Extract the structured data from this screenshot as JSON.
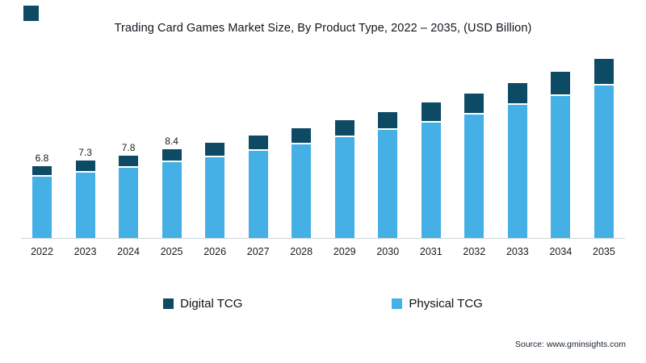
{
  "page": {
    "title": "Trading Card Games Market Size, By Product Type, 2022 – 2035, (USD Billion)",
    "source": "Source: www.gminsights.com"
  },
  "colors": {
    "digital_tcg": "#0d4a63",
    "physical_tcg": "#45b0e5",
    "logo": "#0d4a63"
  },
  "legend": [
    {
      "label": "Digital TCG",
      "color": "#0d4a63"
    },
    {
      "label": "Physical TCG",
      "color": "#45b0e5"
    }
  ],
  "chart_data": {
    "type": "bar",
    "stacked": true,
    "title": "Trading Card Games Market Size, By Product Type, 2022 – 2035, (USD Billion)",
    "xlabel": "",
    "ylabel": "USD Billion",
    "ylim": [
      0,
      17.5
    ],
    "grid": false,
    "legend_position": "bottom",
    "categories": [
      "2022",
      "2023",
      "2024",
      "2025",
      "2026",
      "2027",
      "2028",
      "2029",
      "2030",
      "2031",
      "2032",
      "2033",
      "2034",
      "2035"
    ],
    "series": [
      {
        "name": "Physical TCG",
        "color": "#45b0e5",
        "values": [
          5.9,
          6.3,
          6.8,
          7.3,
          7.8,
          8.4,
          9.0,
          9.7,
          10.4,
          11.1,
          11.9,
          12.8,
          13.7,
          14.7
        ]
      },
      {
        "name": "Digital TCG",
        "color": "#0d4a63",
        "values": [
          0.9,
          1.0,
          1.0,
          1.1,
          1.2,
          1.3,
          1.4,
          1.5,
          1.6,
          1.8,
          1.9,
          2.0,
          2.2,
          2.4
        ]
      }
    ],
    "totals": [
      6.8,
      7.3,
      7.8,
      8.4,
      9.0,
      9.7,
      10.4,
      11.2,
      12.0,
      12.9,
      13.8,
      14.8,
      15.9,
      17.1
    ],
    "total_labels": {
      "2022": "6.8",
      "2023": "7.3",
      "2024": "7.8",
      "2025": "8.4"
    }
  }
}
